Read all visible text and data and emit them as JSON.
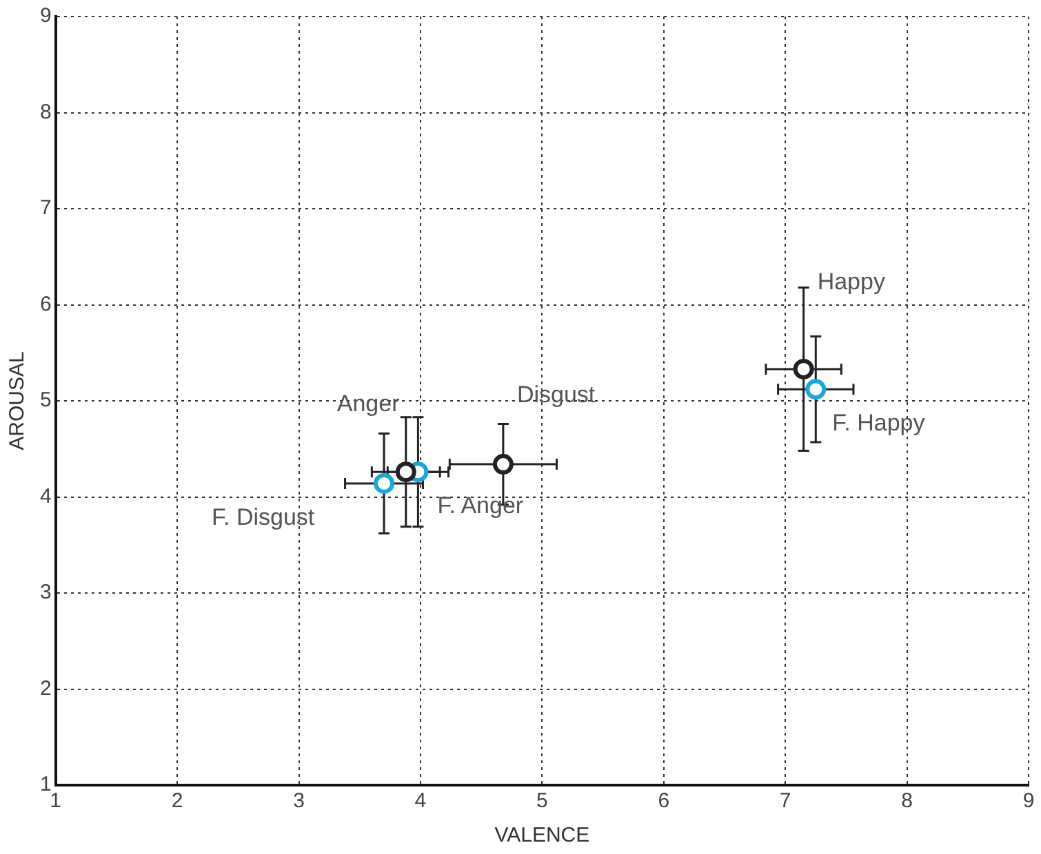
{
  "chart_data": {
    "type": "scatter",
    "xlabel": "VALENCE",
    "ylabel": "AROUSAL",
    "xlim": [
      1,
      9
    ],
    "ylim": [
      1,
      9
    ],
    "xticks": [
      1,
      2,
      3,
      4,
      5,
      6,
      7,
      8,
      9
    ],
    "yticks": [
      1,
      2,
      3,
      4,
      5,
      6,
      7,
      8,
      9
    ],
    "grid": true,
    "legend": false,
    "marker": "circle",
    "series": [
      {
        "name": "Happy",
        "color": "#222222",
        "x": [
          7.15
        ],
        "values": [
          5.33
        ],
        "errors": [
          0.85
        ],
        "xerrors": [
          0.31
        ]
      },
      {
        "name": "F. Happy",
        "color": "#1aa7e0",
        "x": [
          7.25
        ],
        "values": [
          5.12
        ],
        "errors": [
          0.55
        ],
        "xerrors": [
          0.31
        ]
      },
      {
        "name": "Anger",
        "color": "#222222",
        "x": [
          3.88
        ],
        "values": [
          4.26
        ],
        "errors": [
          0.57
        ],
        "xerrors": [
          0.28
        ]
      },
      {
        "name": "Disgust",
        "color": "#222222",
        "x": [
          4.68
        ],
        "values": [
          4.34
        ],
        "errors": [
          0.42
        ],
        "xerrors": [
          0.44
        ]
      },
      {
        "name": "F. Anger",
        "color": "#1aa7e0",
        "x": [
          3.98
        ],
        "values": [
          4.26
        ],
        "errors": [
          0.57
        ],
        "xerrors": [
          0.25
        ]
      },
      {
        "name": "F. Disgust",
        "color": "#1aa7e0",
        "x": [
          3.7
        ],
        "values": [
          4.14
        ],
        "errors": [
          0.52
        ],
        "xerrors": [
          0.32
        ]
      }
    ]
  }
}
